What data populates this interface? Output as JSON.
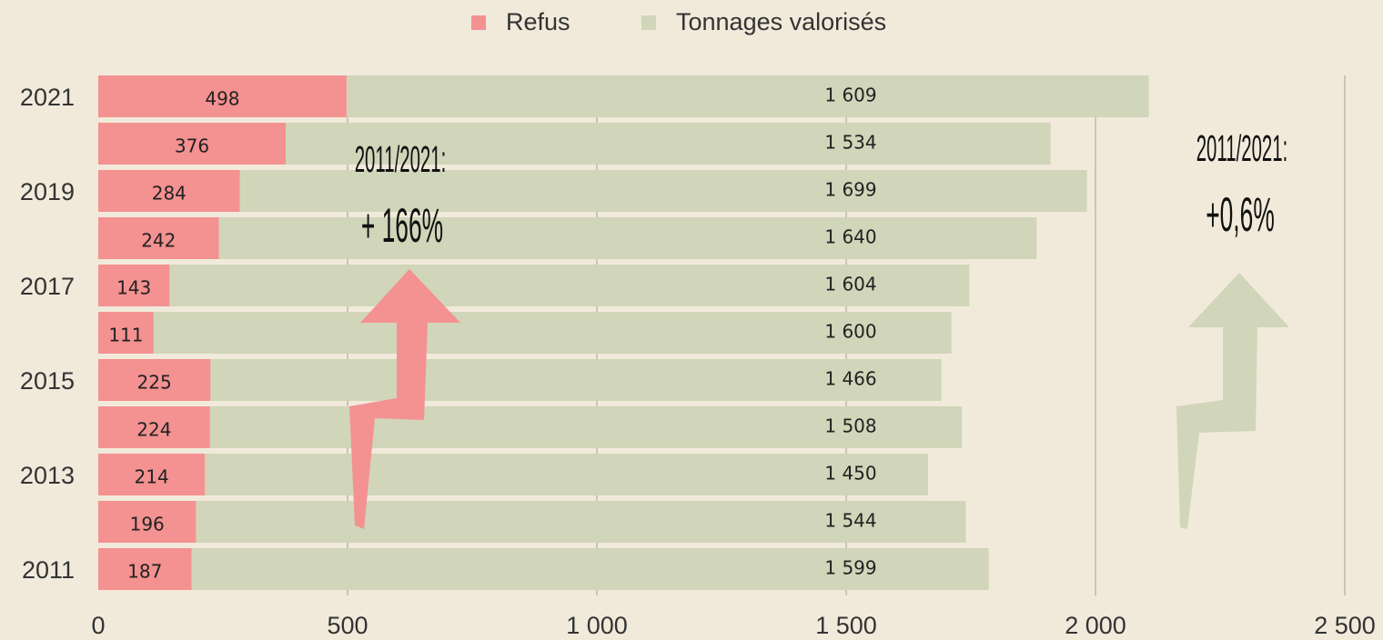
{
  "chart_data": {
    "type": "stacked_barh",
    "categories": [
      "2021",
      null,
      "2019",
      null,
      "2017",
      null,
      "2015",
      null,
      "2013",
      null,
      "2011"
    ],
    "series": [
      {
        "name": "Refus",
        "color": "#f49191",
        "values": [
          498,
          376,
          284,
          242,
          143,
          111,
          225,
          224,
          214,
          196,
          187
        ]
      },
      {
        "name": "Tonnages valorisés",
        "color": "#d1d5b9",
        "values": [
          1609,
          1534,
          1699,
          1640,
          1604,
          1600,
          1466,
          1508,
          1450,
          1544,
          1599
        ],
        "value_labels": [
          "1 609",
          "1 534",
          "1 699",
          "1 640",
          "1 604",
          "1 600",
          "1 466",
          "1 508",
          "1 450",
          "1 544",
          "1 599"
        ]
      }
    ],
    "xlim": [
      0,
      2500
    ],
    "xticks": [
      0,
      500,
      {
        "value": 1000,
        "label": "1 000"
      },
      {
        "value": 1500,
        "label": "1 500"
      },
      {
        "value": 2000,
        "label": "2 000"
      },
      {
        "value": 2500,
        "label": "2 500"
      }
    ],
    "grid": true,
    "legend": "top",
    "annotations": [
      "2011/2021:",
      "+ 166%",
      "2011/2021:",
      "+0,6%"
    ]
  }
}
